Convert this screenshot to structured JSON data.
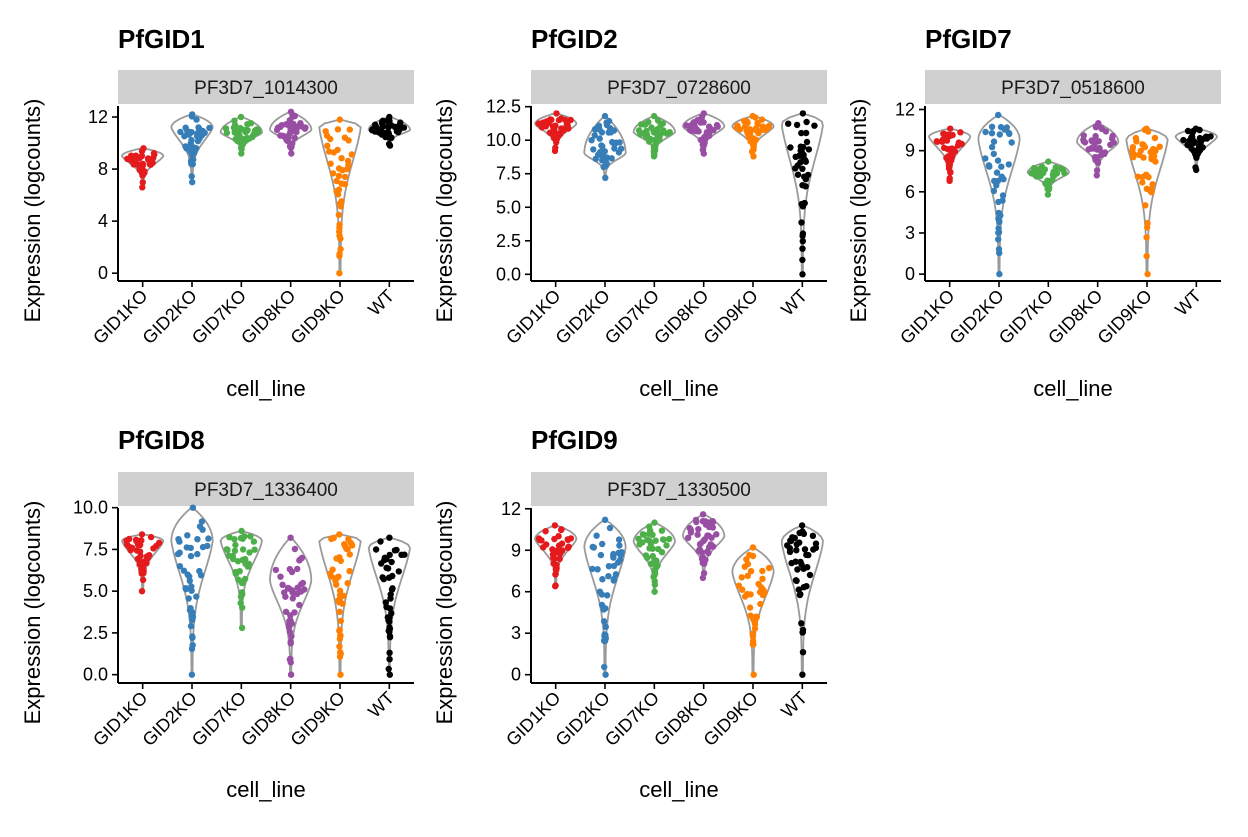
{
  "chart_data": [
    {
      "type": "violin",
      "title": "PfGID1",
      "strip": "PF3D7_1014300",
      "xlabel": "cell_line",
      "ylabel": "Expression (logcounts)",
      "categories": [
        "GID1KO",
        "GID2KO",
        "GID7KO",
        "GID8KO",
        "GID9KO",
        "WT"
      ],
      "ylim": [
        -0.6,
        13
      ],
      "yticks": [
        0,
        4,
        8,
        12
      ],
      "ytick_labels": [
        "0",
        "4",
        "8",
        "12"
      ],
      "groups": [
        {
          "min": 6.6,
          "max": 9.6,
          "mode": 9.0
        },
        {
          "min": 7.0,
          "max": 12.2,
          "mode": 11.2
        },
        {
          "min": 9.2,
          "max": 12.0,
          "mode": 10.8
        },
        {
          "min": 9.2,
          "max": 12.4,
          "mode": 11.0
        },
        {
          "min": 0.0,
          "max": 11.8,
          "mode": 11.2
        },
        {
          "min": 9.8,
          "max": 12.0,
          "mode": 11.0
        }
      ]
    },
    {
      "type": "violin",
      "title": "PfGID2",
      "strip": "PF3D7_0728600",
      "xlabel": "cell_line",
      "ylabel": "Expression (logcounts)",
      "categories": [
        "GID1KO",
        "GID2KO",
        "GID7KO",
        "GID8KO",
        "GID9KO",
        "WT"
      ],
      "ylim": [
        -0.5,
        12.7
      ],
      "yticks": [
        0,
        2.5,
        5,
        7.5,
        10,
        12.5
      ],
      "ytick_labels": [
        "0.0",
        "2.5",
        "5.0",
        "7.5",
        "10.0",
        "12.5"
      ],
      "groups": [
        {
          "min": 9.2,
          "max": 12.0,
          "mode": 11.2
        },
        {
          "min": 7.2,
          "max": 11.8,
          "mode": 9.0
        },
        {
          "min": 8.8,
          "max": 11.8,
          "mode": 10.6
        },
        {
          "min": 9.0,
          "max": 12.0,
          "mode": 11.0
        },
        {
          "min": 8.8,
          "max": 11.8,
          "mode": 11.0
        },
        {
          "min": 0.0,
          "max": 12.0,
          "mode": 11.2
        }
      ]
    },
    {
      "type": "violin",
      "title": "PfGID7",
      "strip": "PF3D7_0518600",
      "xlabel": "cell_line",
      "ylabel": "Expression (logcounts)",
      "categories": [
        "GID1KO",
        "GID2KO",
        "GID7KO",
        "GID8KO",
        "GID9KO",
        "WT"
      ],
      "ylim": [
        -0.5,
        12.4
      ],
      "yticks": [
        0,
        3,
        6,
        9,
        12
      ],
      "ytick_labels": [
        "0",
        "3",
        "6",
        "9",
        "12"
      ],
      "groups": [
        {
          "min": 6.8,
          "max": 10.6,
          "mode": 10.0
        },
        {
          "min": 0.0,
          "max": 11.6,
          "mode": 9.8
        },
        {
          "min": 5.8,
          "max": 8.2,
          "mode": 7.4
        },
        {
          "min": 7.2,
          "max": 11.0,
          "mode": 9.6
        },
        {
          "min": 0.0,
          "max": 10.6,
          "mode": 9.8
        },
        {
          "min": 7.6,
          "max": 10.6,
          "mode": 10.0
        }
      ]
    },
    {
      "type": "violin",
      "title": "PfGID8",
      "strip": "PF3D7_1336400",
      "xlabel": "cell_line",
      "ylabel": "Expression (logcounts)",
      "categories": [
        "GID1KO",
        "GID2KO",
        "GID7KO",
        "GID8KO",
        "GID9KO",
        "WT"
      ],
      "ylim": [
        -0.5,
        10.1
      ],
      "yticks": [
        0,
        2.5,
        5,
        7.5,
        10
      ],
      "ytick_labels": [
        "0.0",
        "2.5",
        "5.0",
        "7.5",
        "10.0"
      ],
      "groups": [
        {
          "min": 5.0,
          "max": 8.4,
          "mode": 8.0
        },
        {
          "min": 0.0,
          "max": 10.0,
          "mode": 8.0
        },
        {
          "min": 2.8,
          "max": 8.6,
          "mode": 8.0
        },
        {
          "min": 0.0,
          "max": 8.2,
          "mode": 5.6
        },
        {
          "min": 0.0,
          "max": 8.4,
          "mode": 8.0
        },
        {
          "min": 0.0,
          "max": 8.2,
          "mode": 7.6
        }
      ]
    },
    {
      "type": "violin",
      "title": "PfGID9",
      "strip": "PF3D7_1330500",
      "xlabel": "cell_line",
      "ylabel": "Expression (logcounts)",
      "categories": [
        "GID1KO",
        "GID2KO",
        "GID7KO",
        "GID8KO",
        "GID9KO",
        "WT"
      ],
      "ylim": [
        -0.6,
        12.2
      ],
      "yticks": [
        0,
        3,
        6,
        9,
        12
      ],
      "ytick_labels": [
        "0",
        "3",
        "6",
        "9",
        "12"
      ],
      "groups": [
        {
          "min": 6.4,
          "max": 10.8,
          "mode": 9.8
        },
        {
          "min": 0.0,
          "max": 11.2,
          "mode": 9.2
        },
        {
          "min": 6.0,
          "max": 11.0,
          "mode": 9.6
        },
        {
          "min": 7.0,
          "max": 11.6,
          "mode": 10.0
        },
        {
          "min": 0.0,
          "max": 9.2,
          "mode": 7.4
        },
        {
          "min": 0.0,
          "max": 10.8,
          "mode": 9.6
        }
      ]
    }
  ],
  "colors": {
    "series": [
      "#e41a1c",
      "#377eb8",
      "#4daf4a",
      "#984ea3",
      "#ff7f00",
      "#000000"
    ],
    "violin_outline": "#9a9a9a",
    "strip_fill": "#d0d0d0",
    "axis": "#000000"
  }
}
